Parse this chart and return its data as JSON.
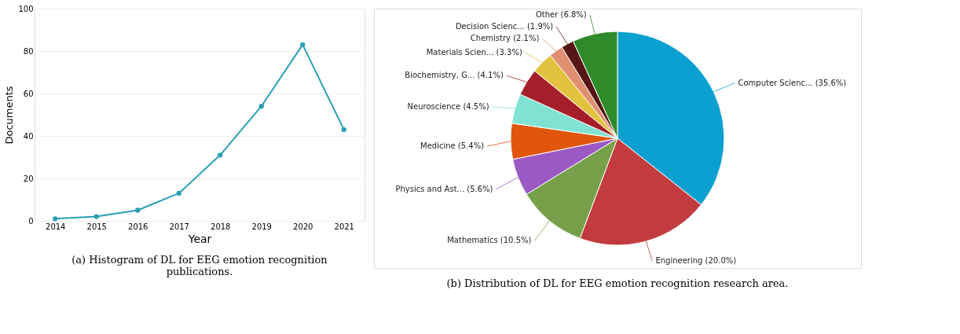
{
  "chart_data": [
    {
      "type": "line",
      "categories": [
        "2014",
        "2015",
        "2016",
        "2017",
        "2018",
        "2019",
        "2020",
        "2021"
      ],
      "xlabel": "Year",
      "ylabel": "Documents",
      "series": [
        {
          "color": "#2a9fb5",
          "values": [
            1,
            2,
            5,
            13,
            31,
            54,
            83,
            43
          ]
        }
      ],
      "ylim": [
        0,
        100
      ],
      "yticks": [
        0,
        20,
        40,
        60,
        80,
        100
      ],
      "grid": "y",
      "marker": "circle",
      "line_style": "solid",
      "legend": false,
      "annotations": [
        "(a) Histogram of DL for EEG emotion recognition publications."
      ]
    },
    {
      "type": "pie",
      "categories": [
        "Computer Scienc...",
        "Engineering",
        "Mathematics",
        "Physics and Ast...",
        "Medicine",
        "Neuroscience",
        "Biochemistry, G...",
        "Materials Scien...",
        "Chemistry",
        "Decision Scienc...",
        "Other"
      ],
      "values": [
        35.6,
        20.0,
        10.5,
        5.6,
        5.4,
        4.5,
        4.1,
        3.3,
        2.1,
        1.9,
        6.8
      ],
      "value_labels": [
        "(35.6%)",
        "(20.0%)",
        "(10.5%)",
        "(5.6%)",
        "(5.4%)",
        "(4.5%)",
        "(4.1%)",
        "(3.3%)",
        "(2.1%)",
        "(1.9%)",
        "(6.8%)"
      ],
      "colors": [
        "#0ba0cf",
        "#c23b3e",
        "#77a04a",
        "#9b59c4",
        "#e0560c",
        "#80e2d2",
        "#a51f2a",
        "#e2c23e",
        "#e08f70",
        "#561616",
        "#2f8a2a"
      ],
      "legend": false,
      "annotations": [
        "(b) Distribution of DL for EEG emotion recognition research area."
      ]
    }
  ]
}
